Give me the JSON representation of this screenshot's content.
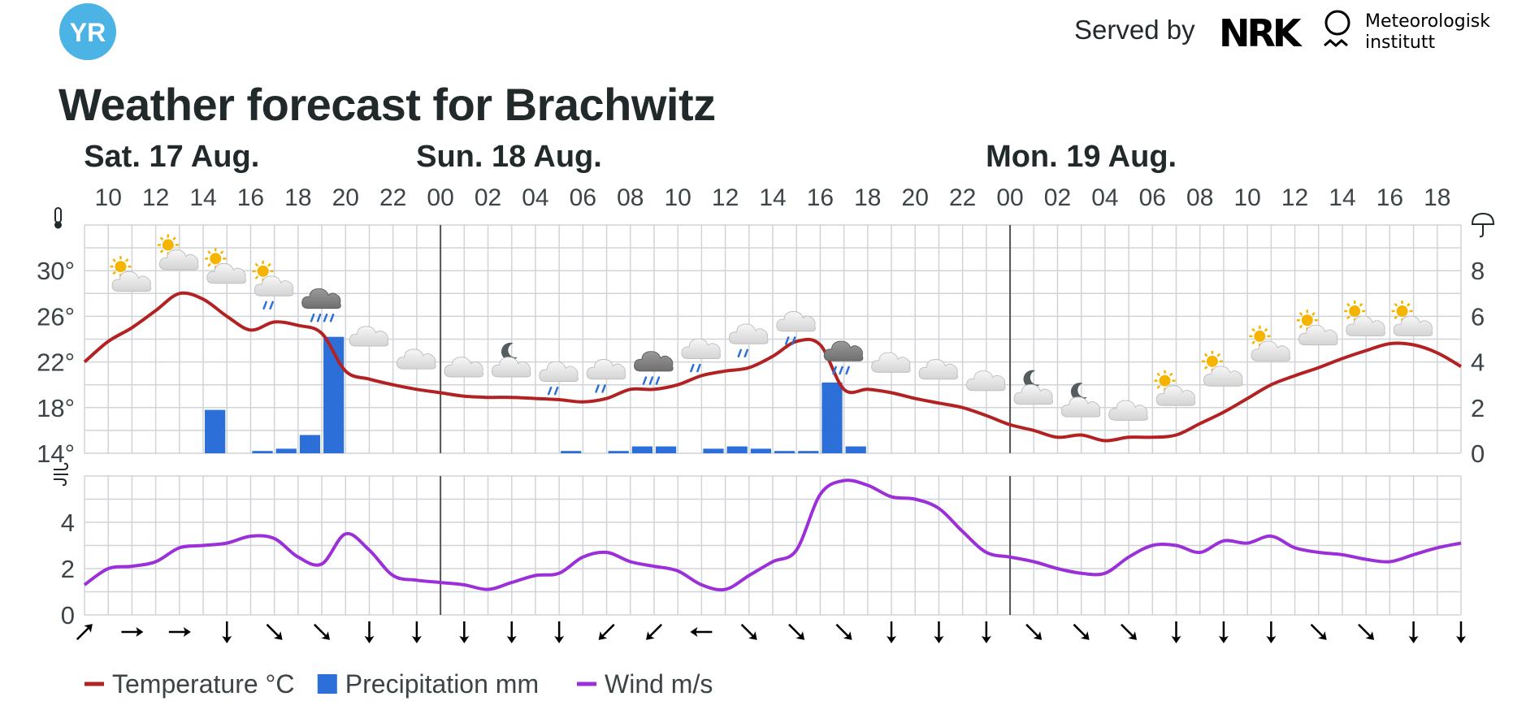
{
  "brand": {
    "logo_text": "YR",
    "logo_color": "#4cb4e4"
  },
  "header": {
    "served_by": "Served by",
    "nrk_logo": "NRK",
    "met_line1": "Meteorologisk",
    "met_line2": "institutt"
  },
  "title": "Weather forecast for Brachwitz",
  "colors": {
    "temperature": "#b22222",
    "precipitation": "#2d6fd8",
    "wind": "#9b2fd8",
    "grid": "#d0d4d8",
    "day_divider": "#555555"
  },
  "chart_data": {
    "type": "line",
    "days": [
      {
        "label": "Sat. 17 Aug.",
        "hour": 10
      },
      {
        "label": "Sun. 18 Aug.",
        "hour": 24
      },
      {
        "label": "Mon. 19 Aug.",
        "hour": 48
      }
    ],
    "start_hour": 9,
    "end_hour": 67,
    "x_tick_labels": [
      "10",
      "12",
      "14",
      "16",
      "18",
      "20",
      "22",
      "00",
      "02",
      "04",
      "06",
      "08",
      "10",
      "12",
      "14",
      "16",
      "18",
      "20",
      "22",
      "00",
      "02",
      "04",
      "06",
      "08",
      "10",
      "12",
      "14",
      "16",
      "18"
    ],
    "x_tick_hours": [
      10,
      12,
      14,
      16,
      18,
      20,
      22,
      24,
      26,
      28,
      30,
      32,
      34,
      36,
      38,
      40,
      42,
      44,
      46,
      48,
      50,
      52,
      54,
      56,
      58,
      60,
      62,
      64,
      66
    ],
    "temperature": {
      "unit": "°C",
      "ylim": [
        14,
        34
      ],
      "ticks": [
        14,
        18,
        22,
        26,
        30
      ],
      "tick_labels": [
        "14°",
        "18°",
        "22°",
        "26°",
        "30°"
      ],
      "hours": [
        9,
        10,
        11,
        12,
        13,
        14,
        15,
        16,
        17,
        18,
        19,
        20,
        21,
        22,
        23,
        24,
        25,
        26,
        27,
        28,
        29,
        30,
        31,
        32,
        33,
        34,
        35,
        36,
        37,
        38,
        39,
        40,
        41,
        42,
        43,
        44,
        45,
        46,
        47,
        48,
        49,
        50,
        51,
        52,
        53,
        54,
        55,
        56,
        57,
        58,
        59,
        60,
        61,
        62,
        63,
        64,
        65,
        66,
        67
      ],
      "values": [
        22.0,
        23.8,
        25.0,
        26.5,
        28.0,
        27.5,
        26.0,
        24.8,
        25.5,
        25.2,
        24.5,
        21.2,
        20.5,
        20.0,
        19.6,
        19.3,
        19.0,
        18.9,
        18.9,
        18.8,
        18.7,
        18.5,
        18.8,
        19.6,
        19.6,
        20.0,
        20.8,
        21.2,
        21.5,
        22.5,
        23.8,
        23.5,
        19.6,
        19.6,
        19.3,
        18.8,
        18.4,
        18.0,
        17.3,
        16.5,
        16.0,
        15.4,
        15.6,
        15.1,
        15.4,
        15.4,
        15.6,
        16.6,
        17.6,
        18.8,
        20.0,
        20.8,
        21.5,
        22.3,
        23.0,
        23.6,
        23.5,
        22.8,
        21.6
      ]
    },
    "precipitation": {
      "unit": "mm",
      "ylim": [
        0,
        10
      ],
      "ticks": [
        0,
        2,
        4,
        6,
        8
      ],
      "tick_labels": [
        "0",
        "2",
        "4",
        "6",
        "8"
      ],
      "hours": [
        14,
        16,
        17,
        18,
        19,
        29,
        31,
        32,
        33,
        35,
        36,
        37,
        38,
        39,
        40,
        41
      ],
      "values": [
        1.9,
        0.1,
        0.2,
        0.8,
        5.1,
        0.1,
        0.1,
        0.3,
        0.3,
        0.2,
        0.3,
        0.2,
        0.1,
        0.1,
        3.1,
        0.3
      ]
    },
    "wind": {
      "unit": "m/s",
      "ylim": [
        0,
        6
      ],
      "ticks": [
        0,
        2,
        4
      ],
      "tick_labels": [
        "0",
        "2",
        "4"
      ],
      "hours": [
        9,
        10,
        11,
        12,
        13,
        14,
        15,
        16,
        17,
        18,
        19,
        20,
        21,
        22,
        23,
        24,
        25,
        26,
        27,
        28,
        29,
        30,
        31,
        32,
        33,
        34,
        35,
        36,
        37,
        38,
        39,
        40,
        41,
        42,
        43,
        44,
        45,
        46,
        47,
        48,
        49,
        50,
        51,
        52,
        53,
        54,
        55,
        56,
        57,
        58,
        59,
        60,
        61,
        62,
        63,
        64,
        65,
        66,
        67
      ],
      "values": [
        1.3,
        2.0,
        2.1,
        2.3,
        2.9,
        3.0,
        3.1,
        3.4,
        3.3,
        2.5,
        2.2,
        3.5,
        2.8,
        1.7,
        1.5,
        1.4,
        1.3,
        1.1,
        1.4,
        1.7,
        1.8,
        2.5,
        2.7,
        2.3,
        2.1,
        1.9,
        1.3,
        1.1,
        1.7,
        2.3,
        2.8,
        5.2,
        5.8,
        5.6,
        5.1,
        5.0,
        4.6,
        3.6,
        2.7,
        2.5,
        2.3,
        2.0,
        1.8,
        1.8,
        2.5,
        3.0,
        3.0,
        2.7,
        3.2,
        3.1,
        3.4,
        2.9,
        2.7,
        2.6,
        2.4,
        2.3,
        2.6,
        2.9,
        3.1
      ]
    },
    "wind_direction_arrows": {
      "hours": [
        9,
        11,
        13,
        15,
        17,
        19,
        21,
        23,
        25,
        27,
        29,
        31,
        33,
        35,
        37,
        39,
        41,
        43,
        45,
        47,
        49,
        51,
        53,
        55,
        57,
        59,
        61,
        63,
        65,
        67
      ],
      "glyphs": [
        "↗",
        "→",
        "→",
        "↓",
        "↘",
        "↘",
        "↓",
        "↓",
        "↓",
        "↓",
        "↓",
        "↙",
        "↙",
        "←",
        "↘",
        "↘",
        "↘",
        "↓",
        "↓",
        "↓",
        "↘",
        "↘",
        "↘",
        "↓",
        "↓",
        "↓",
        "↘",
        "↘",
        "↓",
        "↓"
      ]
    },
    "weather_symbols": [
      {
        "hour": 11,
        "icon": "partly-cloudy-day-icon",
        "temp": 29.5
      },
      {
        "hour": 13,
        "icon": "partly-cloudy-day-icon",
        "temp": 31.4
      },
      {
        "hour": 15,
        "icon": "partly-cloudy-day-icon",
        "temp": 30.2
      },
      {
        "hour": 17,
        "icon": "partly-cloudy-day-rain-icon",
        "temp": 29.1
      },
      {
        "hour": 19,
        "icon": "heavy-rain-icon",
        "temp": 28.0
      },
      {
        "hour": 21,
        "icon": "cloudy-icon",
        "temp": 24.7
      },
      {
        "hour": 23,
        "icon": "cloudy-icon",
        "temp": 22.7
      },
      {
        "hour": 25,
        "icon": "cloudy-icon",
        "temp": 22.0
      },
      {
        "hour": 27,
        "icon": "partly-cloudy-night-icon",
        "temp": 22.0
      },
      {
        "hour": 29,
        "icon": "light-rain-icon",
        "temp": 21.6
      },
      {
        "hour": 31,
        "icon": "light-rain-icon",
        "temp": 21.8
      },
      {
        "hour": 33,
        "icon": "rain-icon",
        "temp": 22.5
      },
      {
        "hour": 35,
        "icon": "light-rain-icon",
        "temp": 23.6
      },
      {
        "hour": 37,
        "icon": "light-rain-icon",
        "temp": 24.9
      },
      {
        "hour": 39,
        "icon": "light-rain-icon",
        "temp": 26.0
      },
      {
        "hour": 41,
        "icon": "rain-icon",
        "temp": 23.4
      },
      {
        "hour": 43,
        "icon": "cloudy-icon",
        "temp": 22.4
      },
      {
        "hour": 45,
        "icon": "cloudy-icon",
        "temp": 21.8
      },
      {
        "hour": 47,
        "icon": "cloudy-icon",
        "temp": 20.8
      },
      {
        "hour": 49,
        "icon": "partly-cloudy-night-icon",
        "temp": 19.6
      },
      {
        "hour": 51,
        "icon": "partly-cloudy-night-icon",
        "temp": 18.5
      },
      {
        "hour": 53,
        "icon": "cloudy-icon",
        "temp": 18.2
      },
      {
        "hour": 55,
        "icon": "partly-cloudy-day-icon",
        "temp": 19.5
      },
      {
        "hour": 57,
        "icon": "partly-cloudy-day-icon",
        "temp": 21.2
      },
      {
        "hour": 59,
        "icon": "partly-cloudy-day-icon",
        "temp": 23.4
      },
      {
        "hour": 61,
        "icon": "partly-cloudy-day-icon",
        "temp": 24.8
      },
      {
        "hour": 63,
        "icon": "partly-cloudy-day-icon",
        "temp": 25.6
      },
      {
        "hour": 65,
        "icon": "partly-cloudy-day-icon",
        "temp": 25.6
      }
    ],
    "axis_icons": {
      "temperature": "thermometer-icon",
      "precipitation": "umbrella-icon",
      "wind": "wind-icon"
    },
    "legend": [
      {
        "label": "Temperature °C",
        "swatch": "line",
        "color": "#b22222"
      },
      {
        "label": "Precipitation mm",
        "swatch": "square",
        "color": "#2d6fd8"
      },
      {
        "label": "Wind m/s",
        "swatch": "line",
        "color": "#9b2fd8"
      }
    ]
  }
}
